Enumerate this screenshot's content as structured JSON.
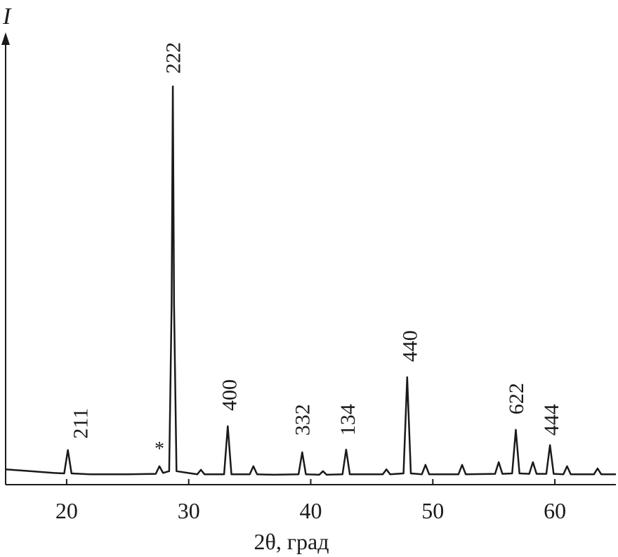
{
  "chart_data": {
    "type": "line",
    "y_label": "I",
    "x_label": "2θ, град",
    "xlim": [
      15,
      65
    ],
    "xticks": [
      20,
      30,
      40,
      50,
      60
    ],
    "ylim": [
      0,
      100
    ],
    "x": [
      15,
      17,
      19,
      19.8,
      20.1,
      20.4,
      22,
      25,
      27.3,
      27.6,
      27.9,
      28.4,
      28.6,
      28.7,
      28.8,
      29.0,
      30.7,
      31.0,
      31.3,
      32.9,
      33.2,
      33.5,
      35.0,
      35.3,
      35.6,
      37.0,
      39.0,
      39.3,
      39.6,
      40.7,
      41.0,
      41.3,
      42.6,
      42.9,
      43.2,
      45.9,
      46.2,
      46.5,
      47.6,
      47.9,
      48.2,
      49.1,
      49.4,
      49.7,
      52.1,
      52.4,
      52.7,
      55.1,
      55.4,
      55.7,
      56.5,
      56.8,
      57.1,
      57.9,
      58.2,
      58.5,
      59.3,
      59.6,
      59.9,
      60.7,
      61.0,
      61.3,
      63.2,
      63.5,
      63.8,
      65
    ],
    "series": [
      {
        "color": "#1a1a1a",
        "values": [
          3.4,
          3.0,
          2.6,
          2.5,
          7.7,
          2.5,
          2.3,
          2.3,
          2.4,
          4.1,
          2.6,
          3.0,
          40,
          88.6,
          40,
          3.0,
          2.3,
          3.3,
          2.3,
          2.3,
          13.0,
          2.3,
          2.3,
          4.1,
          2.3,
          2.2,
          2.3,
          7.2,
          2.3,
          2.2,
          3.0,
          2.2,
          2.3,
          7.8,
          2.3,
          2.3,
          3.4,
          2.3,
          2.5,
          23.9,
          2.5,
          2.3,
          4.4,
          2.3,
          2.3,
          4.4,
          2.3,
          2.4,
          5.0,
          2.4,
          2.5,
          12.2,
          2.5,
          2.4,
          5.0,
          2.4,
          2.4,
          8.8,
          2.4,
          2.3,
          4.1,
          2.3,
          2.3,
          3.6,
          2.3,
          2.3
        ]
      }
    ],
    "annotations": [
      {
        "text": "211",
        "x": 21.3,
        "y": 10.2,
        "vertical": true
      },
      {
        "text": "*",
        "x": 27.6,
        "y": 8.1,
        "vertical": false
      },
      {
        "text": "222",
        "x": 28.9,
        "y": 91.4,
        "vertical": true
      },
      {
        "text": "400",
        "x": 33.5,
        "y": 16.4,
        "vertical": true
      },
      {
        "text": "332",
        "x": 39.5,
        "y": 10.9,
        "vertical": true
      },
      {
        "text": "134",
        "x": 43.2,
        "y": 10.9,
        "vertical": true
      },
      {
        "text": "440",
        "x": 48.3,
        "y": 27.3,
        "vertical": true
      },
      {
        "text": "622",
        "x": 57.0,
        "y": 15.6,
        "vertical": true
      },
      {
        "text": "444",
        "x": 59.9,
        "y": 10.9,
        "vertical": true
      }
    ]
  }
}
